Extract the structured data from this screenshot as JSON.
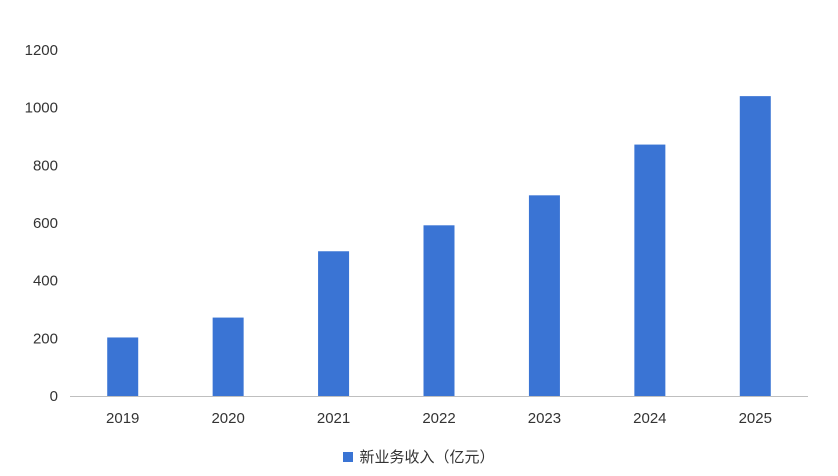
{
  "chart_data": {
    "type": "bar",
    "categories": [
      "2019",
      "2020",
      "2021",
      "2022",
      "2023",
      "2024",
      "2025"
    ],
    "series": [
      {
        "name": "新业务收入（亿元）",
        "values": [
          203,
          272,
          502,
          592,
          696,
          872,
          1040
        ],
        "color": "#3a74d4"
      }
    ],
    "ylim": [
      0,
      1200
    ],
    "yticks": [
      0,
      200,
      400,
      600,
      800,
      1000,
      1200
    ],
    "grid": false,
    "legend": "bottom"
  }
}
